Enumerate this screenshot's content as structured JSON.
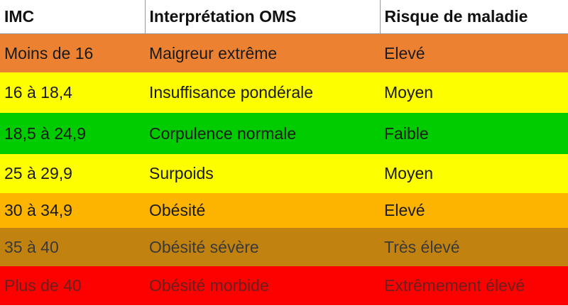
{
  "headers": [
    "IMC",
    "Interprétation OMS",
    "Risque de maladie"
  ],
  "rows": [
    {
      "imc": "Moins de 16",
      "interpretation": "Maigreur extrême",
      "risk": "Elevé",
      "bg": "#EC8231",
      "fg": "#1a1a1a"
    },
    {
      "imc": "16 à 18,4",
      "interpretation": "Insuffisance pondérale",
      "risk": "Moyen",
      "bg": "#FDFE00",
      "fg": "#1a1a1a"
    },
    {
      "imc": "18,5 à 24,9",
      "interpretation": "Corpulence normale",
      "risk": "Faible",
      "bg": "#00CC00",
      "fg": "#1a1a1a"
    },
    {
      "imc": "25 à 29,9",
      "interpretation": "Surpoids",
      "risk": "Moyen",
      "bg": "#FDFE00",
      "fg": "#1a1a1a"
    },
    {
      "imc": "30 à 34,9",
      "interpretation": "Obésité",
      "risk": "Elevé",
      "bg": "#FDB400",
      "fg": "#1a1a1a"
    },
    {
      "imc": "35 à 40",
      "interpretation": "Obésité sévère",
      "risk": "Très élevé",
      "bg": "#C28210",
      "fg": "#3a3a3a"
    },
    {
      "imc": "Plus de 40",
      "interpretation": "Obésité morbide",
      "risk": "Extrêmement élevé",
      "bg": "#FD0000",
      "fg": "#6a2020"
    }
  ]
}
